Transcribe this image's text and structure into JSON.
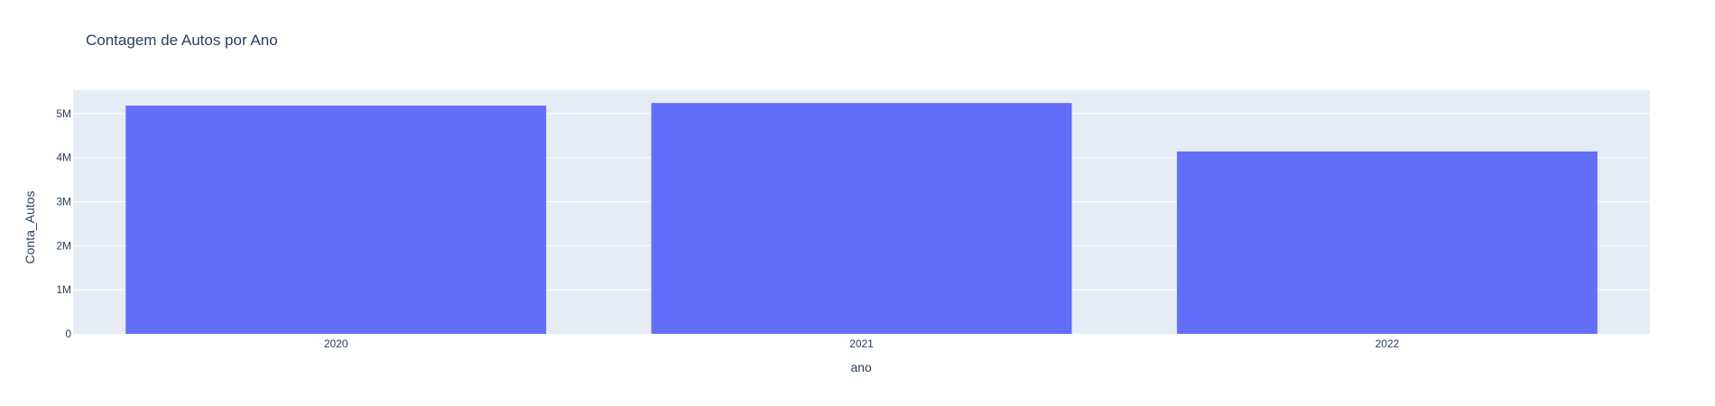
{
  "chart_data": {
    "type": "bar",
    "title": "Contagem de Autos por Ano",
    "xlabel": "ano",
    "ylabel": "Conta_Autos",
    "categories": [
      "2020",
      "2021",
      "2022"
    ],
    "values": [
      5180000,
      5240000,
      4140000
    ],
    "ylim": [
      0,
      5530000
    ],
    "yticks": [
      0,
      1000000,
      2000000,
      3000000,
      4000000,
      5000000
    ],
    "ytick_labels": [
      "0",
      "1M",
      "2M",
      "3M",
      "4M",
      "5M"
    ],
    "grid": true,
    "legend": false,
    "colors": {
      "bar": "#636efa",
      "plot_background": "#e5ecf6",
      "grid": "#ffffff",
      "text": "#2a3f5f"
    }
  }
}
